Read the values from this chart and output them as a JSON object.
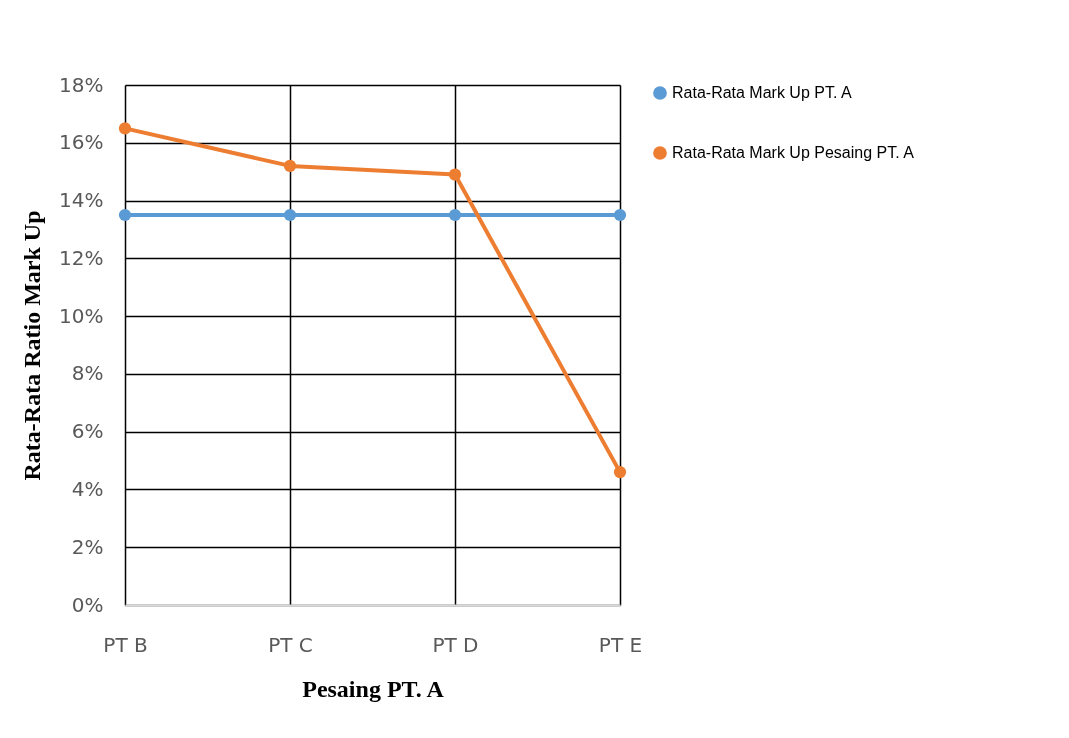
{
  "chart_data": {
    "type": "line",
    "xlabel": "Pesaing PT. A",
    "ylabel": "Rata-Rata Ratio Mark Up",
    "categories": [
      "PT B",
      "PT C",
      "PT D",
      "PT E"
    ],
    "series": [
      {
        "name": "Rata-Rata Mark Up PT. A",
        "color": "#5b9bd5",
        "values": [
          13.5,
          13.5,
          13.5,
          13.5
        ]
      },
      {
        "name": "Rata-Rata Mark Up Pesaing PT. A",
        "color": "#ed7d31",
        "values": [
          16.5,
          15.2,
          14.9,
          4.6
        ]
      }
    ],
    "ylim": [
      0,
      18
    ],
    "yticks": [
      {
        "value": 0,
        "label": "0%"
      },
      {
        "value": 2,
        "label": "2%"
      },
      {
        "value": 4,
        "label": "4%"
      },
      {
        "value": 6,
        "label": "6%"
      },
      {
        "value": 8,
        "label": "8%"
      },
      {
        "value": 10,
        "label": "10%"
      },
      {
        "value": 12,
        "label": "12%"
      },
      {
        "value": 14,
        "label": "14%"
      },
      {
        "value": 16,
        "label": "16%"
      },
      {
        "value": 18,
        "label": "18%"
      }
    ],
    "grid": true,
    "legend": "right",
    "marker": "circle"
  }
}
